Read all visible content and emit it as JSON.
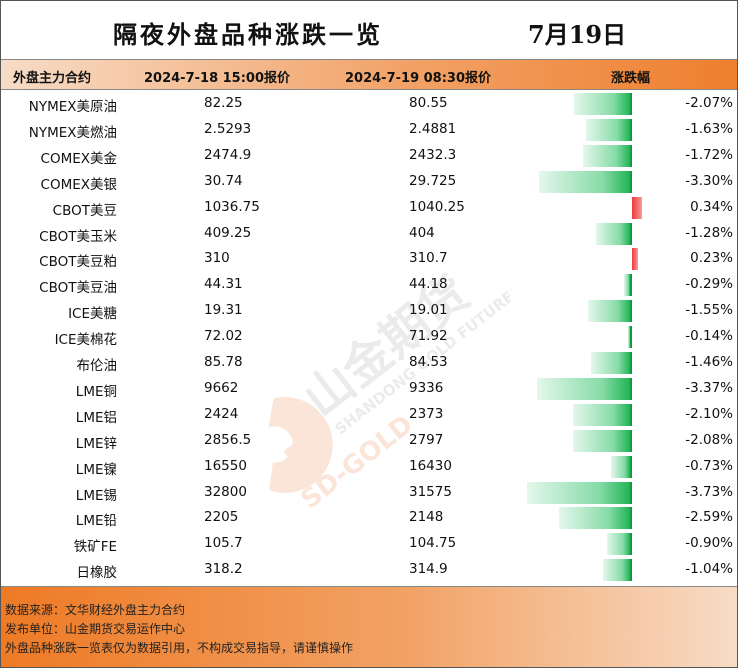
{
  "title": {
    "main": "隔夜外盘品种涨跌一览",
    "date": "7月19日"
  },
  "headers": {
    "name": "外盘主力合约",
    "prev": "2024-7-18 15:00报价",
    "curr": "2024-7-19 08:30报价",
    "change": "涨跌幅"
  },
  "colors": {
    "header_gradient": [
      "#f7dcc7",
      "#ee7f2e"
    ],
    "footer_gradient": [
      "#ee7a25",
      "#f7dcc6"
    ],
    "negative_bar": "#20b455",
    "positive_bar": "#f03a3a"
  },
  "rows": [
    {
      "name": "NYMEX美原油",
      "prev": "82.25",
      "curr": "80.55",
      "change": "-2.07%",
      "pct": -2.07
    },
    {
      "name": "NYMEX美燃油",
      "prev": "2.5293",
      "curr": "2.4881",
      "change": "-1.63%",
      "pct": -1.63
    },
    {
      "name": "COMEX美金",
      "prev": "2474.9",
      "curr": "2432.3",
      "change": "-1.72%",
      "pct": -1.72
    },
    {
      "name": "COMEX美银",
      "prev": "30.74",
      "curr": "29.725",
      "change": "-3.30%",
      "pct": -3.3
    },
    {
      "name": "CBOT美豆",
      "prev": "1036.75",
      "curr": "1040.25",
      "change": "0.34%",
      "pct": 0.34
    },
    {
      "name": "CBOT美玉米",
      "prev": "409.25",
      "curr": "404",
      "change": "-1.28%",
      "pct": -1.28
    },
    {
      "name": "CBOT美豆粕",
      "prev": "310",
      "curr": "310.7",
      "change": "0.23%",
      "pct": 0.23
    },
    {
      "name": "CBOT美豆油",
      "prev": "44.31",
      "curr": "44.18",
      "change": "-0.29%",
      "pct": -0.29
    },
    {
      "name": "ICE美糖",
      "prev": "19.31",
      "curr": "19.01",
      "change": "-1.55%",
      "pct": -1.55
    },
    {
      "name": "ICE美棉花",
      "prev": "72.02",
      "curr": "71.92",
      "change": "-0.14%",
      "pct": -0.14
    },
    {
      "name": "布伦油",
      "prev": "85.78",
      "curr": "84.53",
      "change": "-1.46%",
      "pct": -1.46
    },
    {
      "name": "LME铜",
      "prev": "9662",
      "curr": "9336",
      "change": "-3.37%",
      "pct": -3.37
    },
    {
      "name": "LME铝",
      "prev": "2424",
      "curr": "2373",
      "change": "-2.10%",
      "pct": -2.1
    },
    {
      "name": "LME锌",
      "prev": "2856.5",
      "curr": "2797",
      "change": "-2.08%",
      "pct": -2.08
    },
    {
      "name": "LME镍",
      "prev": "16550",
      "curr": "16430",
      "change": "-0.73%",
      "pct": -0.73
    },
    {
      "name": "LME锡",
      "prev": "32800",
      "curr": "31575",
      "change": "-3.73%",
      "pct": -3.73
    },
    {
      "name": "LME铅",
      "prev": "2205",
      "curr": "2148",
      "change": "-2.59%",
      "pct": -2.59
    },
    {
      "name": "铁矿FE",
      "prev": "105.7",
      "curr": "104.75",
      "change": "-0.90%",
      "pct": -0.9
    },
    {
      "name": "日橡胶",
      "prev": "318.2",
      "curr": "314.9",
      "change": "-1.04%",
      "pct": -1.04
    }
  ],
  "watermark": {
    "brand": "山金期货",
    "english": "SHANDONG GOLD FUTURES",
    "sub": "SD-GOLD"
  },
  "footer": {
    "source": "数据来源：文华财经外盘主力合约",
    "publisher": "发布单位：山金期货交易运作中心",
    "disclaimer": "外盘品种涨跌一览表仅为数据引用，不构成交易指导，请谨慎操作"
  }
}
